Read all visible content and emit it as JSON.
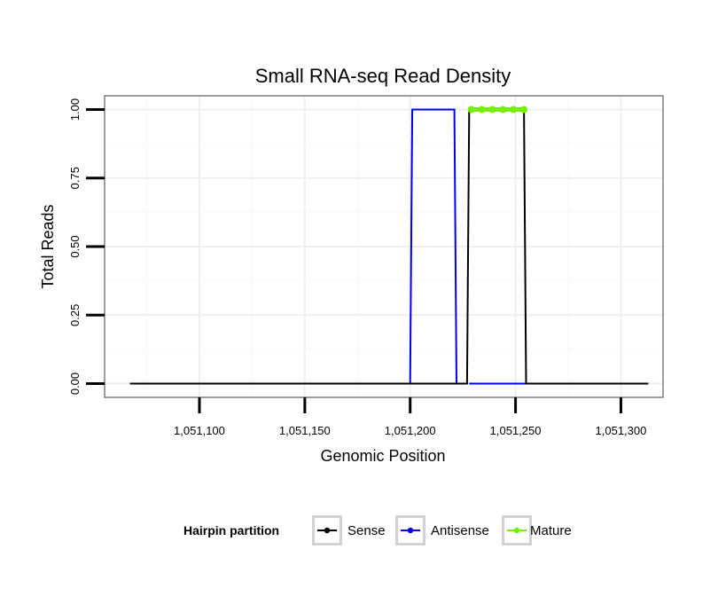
{
  "chart_data": {
    "type": "line",
    "title": "Small RNA-seq Read Density",
    "xlabel": "Genomic Position",
    "ylabel": "Total Reads",
    "xlim": [
      1051055,
      1051320
    ],
    "ylim": [
      -0.05,
      1.05
    ],
    "x_ticks": [
      1051100,
      1051150,
      1051200,
      1051250,
      1051300
    ],
    "x_tick_labels": [
      "1,051,100",
      "1,051,150",
      "1,051,200",
      "1,051,250",
      "1,051,300"
    ],
    "y_ticks": [
      0,
      0.25,
      0.5,
      0.75,
      1.0
    ],
    "y_tick_labels": [
      "0.00",
      "0.25",
      "0.50",
      "0.75",
      "1.00"
    ],
    "grid": true,
    "legend": {
      "title": "Hairpin partition",
      "position": "bottom",
      "entries": [
        {
          "label": "Sense",
          "color": "#000000"
        },
        {
          "label": "Antisense",
          "color": "#0000ee"
        },
        {
          "label": "Mature",
          "color": "#77ee00"
        }
      ]
    },
    "series": [
      {
        "name": "Antisense",
        "color": "#0000ee",
        "x": [
          1051228,
          1051255
        ],
        "y": [
          0,
          0
        ]
      },
      {
        "name": "Antisense",
        "color": "#0000ee",
        "x": [
          1051200,
          1051201,
          1051221,
          1051222
        ],
        "y": [
          0,
          1,
          1,
          0
        ]
      },
      {
        "name": "Sense",
        "color": "#000000",
        "x": [
          1051067,
          1051227,
          1051228,
          1051254,
          1051255,
          1051313
        ],
        "y": [
          0,
          0,
          1,
          1,
          0,
          0
        ]
      },
      {
        "name": "Mature",
        "color": "#77ee00",
        "x": [
          1051229,
          1051234,
          1051239,
          1051244,
          1051249,
          1051254
        ],
        "y": [
          1,
          1,
          1,
          1,
          1,
          1
        ]
      }
    ]
  }
}
